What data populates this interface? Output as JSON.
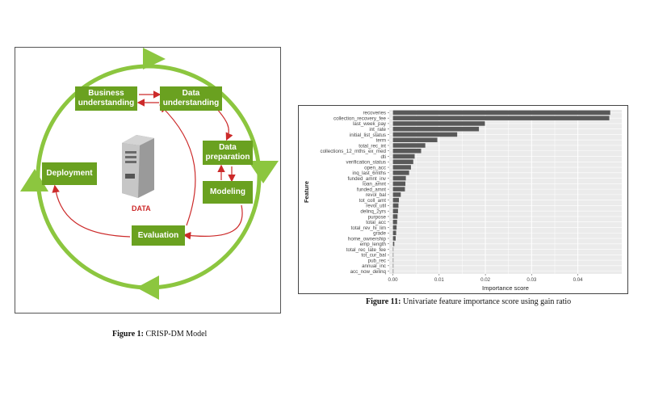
{
  "figure1": {
    "caption_label": "Figure 1:",
    "caption_text": " CRISP-DM  Model",
    "boxes": {
      "business": "Business understanding",
      "data_understanding": "Data understanding",
      "data_preparation": "Data preparation",
      "modeling": "Modeling",
      "evaluation": "Evaluation",
      "deployment": "Deployment"
    },
    "data_label": "DATA",
    "colors": {
      "green": "#6aa120",
      "circle": "#8cc63f",
      "arrow": "#cc2a2a"
    }
  },
  "figure11": {
    "caption_label": "Figure 11:",
    "caption_text": " Univariate feature importance score using gain ratio"
  },
  "chart_data": {
    "type": "bar",
    "orientation": "horizontal",
    "xlabel": "Importance score",
    "ylabel": "Feature",
    "xlim": [
      -0.0008,
      0.0495
    ],
    "xticks": [
      0.0,
      0.01,
      0.02,
      0.03,
      0.04
    ],
    "xtick_labels": [
      "0.00",
      "0.01",
      "0.02",
      "0.03",
      "0.04"
    ],
    "grid": true,
    "categories": [
      "recoveries",
      "collection_recovery_fee",
      "last_week_pay",
      "int_rate",
      "initial_list_status",
      "term",
      "total_rec_int",
      "collections_12_mths_ex_med",
      "dti",
      "verification_status",
      "open_acc",
      "inq_last_6mths",
      "funded_amnt_inv",
      "loan_amnt",
      "funded_amnt",
      "revol_bal",
      "tot_coll_amt",
      "revol_util",
      "delinq_2yrs",
      "purpose",
      "total_acc",
      "total_rev_hi_lim",
      "grade",
      "home_ownership",
      "emp_length",
      "total_rec_late_fee",
      "tot_cur_bal",
      "pub_rec",
      "annual_inc",
      "acc_now_delinq"
    ],
    "values": [
      0.047,
      0.0468,
      0.0199,
      0.0186,
      0.0139,
      0.0096,
      0.007,
      0.0061,
      0.0047,
      0.0044,
      0.0039,
      0.0035,
      0.0028,
      0.0027,
      0.0026,
      0.0017,
      0.0013,
      0.0012,
      0.0011,
      0.001,
      0.0009,
      0.0008,
      0.0007,
      0.0006,
      0.0003,
      0.0,
      0.0,
      0.0,
      0.0,
      0.0
    ],
    "colors": {
      "bar": "#595959",
      "panel": "#ebebeb",
      "grid": "#ffffff"
    }
  }
}
